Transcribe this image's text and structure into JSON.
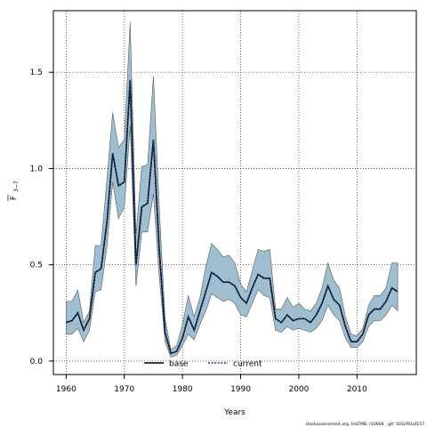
{
  "chart_data": {
    "type": "area",
    "xlabel": "Years",
    "ylabel_main": "F",
    "ylabel_sub": "3−7",
    "xlim": [
      1957.8,
      2020.2
    ],
    "ylim": [
      -0.07,
      1.82
    ],
    "xticks": [
      1960,
      1970,
      1980,
      1990,
      2000,
      2010
    ],
    "yticks": [
      0.0,
      0.5,
      1.0,
      1.5
    ],
    "ytick_labels": [
      "0.0",
      "0.5",
      "1.0",
      "1.5"
    ],
    "grid": true,
    "legend": {
      "placement": "bottom",
      "entries": [
        {
          "name": "base",
          "style": "solid",
          "color": "#000000"
        },
        {
          "name": "current",
          "style": "dotted",
          "color": "#1f3b6e"
        }
      ]
    },
    "band_color": "#9fbfd1",
    "x": [
      1960,
      1961,
      1962,
      1963,
      1964,
      1965,
      1966,
      1967,
      1968,
      1969,
      1970,
      1971,
      1972,
      1973,
      1974,
      1975,
      1976,
      1977,
      1978,
      1979,
      1980,
      1981,
      1982,
      1983,
      1984,
      1985,
      1986,
      1987,
      1988,
      1989,
      1990,
      1991,
      1992,
      1993,
      1994,
      1995,
      1996,
      1997,
      1998,
      1999,
      2000,
      2001,
      2002,
      2003,
      2004,
      2005,
      2006,
      2007,
      2008,
      2009,
      2010,
      2011,
      2012,
      2013,
      2014,
      2015,
      2016,
      2017
    ],
    "series": [
      {
        "name": "current",
        "values": [
          0.2,
          0.21,
          0.25,
          0.16,
          0.22,
          0.46,
          0.48,
          0.72,
          1.08,
          0.91,
          0.93,
          1.46,
          0.5,
          0.8,
          0.82,
          1.15,
          0.58,
          0.15,
          0.04,
          0.05,
          0.12,
          0.23,
          0.16,
          0.26,
          0.36,
          0.46,
          0.44,
          0.41,
          0.41,
          0.39,
          0.33,
          0.3,
          0.38,
          0.45,
          0.43,
          0.43,
          0.22,
          0.2,
          0.24,
          0.21,
          0.22,
          0.22,
          0.2,
          0.24,
          0.3,
          0.39,
          0.32,
          0.29,
          0.18,
          0.1,
          0.1,
          0.14,
          0.24,
          0.27,
          0.27,
          0.31,
          0.38,
          0.36
        ]
      },
      {
        "name": "upper",
        "values": [
          0.31,
          0.31,
          0.37,
          0.2,
          0.26,
          0.6,
          0.6,
          0.94,
          1.29,
          1.11,
          1.15,
          1.76,
          0.66,
          1.01,
          1.02,
          1.48,
          0.8,
          0.22,
          0.06,
          0.08,
          0.19,
          0.34,
          0.23,
          0.33,
          0.49,
          0.61,
          0.58,
          0.54,
          0.55,
          0.51,
          0.4,
          0.36,
          0.47,
          0.58,
          0.57,
          0.58,
          0.27,
          0.27,
          0.33,
          0.28,
          0.3,
          0.27,
          0.26,
          0.3,
          0.38,
          0.51,
          0.42,
          0.38,
          0.23,
          0.14,
          0.13,
          0.17,
          0.29,
          0.34,
          0.34,
          0.38,
          0.51,
          0.51
        ]
      },
      {
        "name": "lower",
        "values": [
          0.14,
          0.14,
          0.17,
          0.1,
          0.16,
          0.36,
          0.37,
          0.59,
          0.93,
          0.74,
          0.8,
          1.22,
          0.39,
          0.67,
          0.67,
          0.87,
          0.44,
          0.1,
          0.02,
          0.03,
          0.08,
          0.14,
          0.11,
          0.19,
          0.26,
          0.35,
          0.33,
          0.31,
          0.32,
          0.3,
          0.24,
          0.23,
          0.3,
          0.37,
          0.34,
          0.33,
          0.16,
          0.15,
          0.18,
          0.16,
          0.17,
          0.16,
          0.15,
          0.17,
          0.21,
          0.29,
          0.24,
          0.21,
          0.12,
          0.07,
          0.07,
          0.1,
          0.18,
          0.21,
          0.21,
          0.24,
          0.29,
          0.26
        ]
      }
    ]
  },
  "footnote": "stockassessment.org, HalTMB, r10604 , git: 503cf91af157"
}
